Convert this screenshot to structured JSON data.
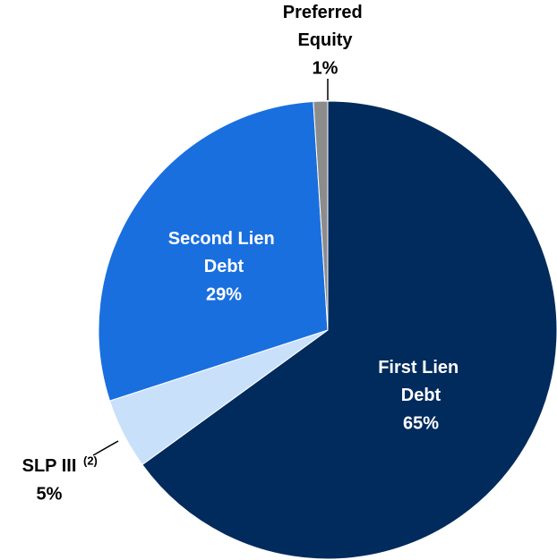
{
  "chart_data": {
    "type": "pie",
    "categories": [
      "First Lien Debt",
      "SLP III",
      "Second Lien Debt",
      "Preferred Equity"
    ],
    "footnote_marks": [
      null,
      "(2)",
      null,
      null
    ],
    "values": [
      65,
      5,
      29,
      1
    ],
    "value_labels": [
      "65%",
      "5%",
      "29%",
      "1%"
    ],
    "colors": [
      "#002b5c",
      "#c9e0fa",
      "#1a6fdf",
      "#8c8c8c"
    ]
  }
}
